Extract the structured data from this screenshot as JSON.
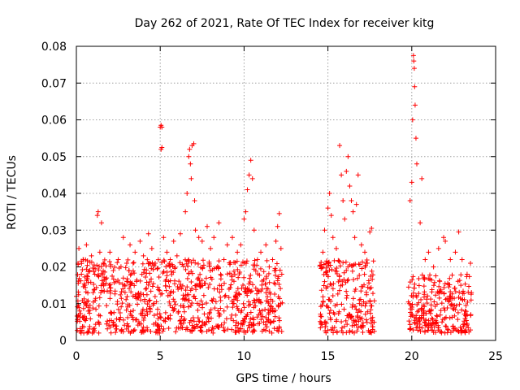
{
  "chart_data": {
    "type": "scatter",
    "title": "Day 262 of 2021, Rate Of TEC Index for receiver kitg",
    "xlabel": "GPS time / hours",
    "ylabel": "ROTI / TECUs",
    "xlim": [
      0,
      25
    ],
    "ylim": [
      0,
      0.08
    ],
    "xticks": [
      0,
      5,
      10,
      15,
      20,
      25
    ],
    "yticks": [
      0,
      0.01,
      0.02,
      0.03,
      0.04,
      0.05,
      0.06,
      0.07,
      0.08
    ],
    "xtick_labels": [
      "0",
      "5",
      "10",
      "15",
      "20",
      "25"
    ],
    "ytick_labels": [
      "0",
      "0.01",
      "0.02",
      "0.03",
      "0.04",
      "0.05",
      "0.06",
      "0.07",
      "0.08"
    ],
    "grid": true,
    "marker": "+",
    "color": "#ff0000",
    "series": [
      {
        "name": "ROTI",
        "points": [
          [
            0.0,
            0.012
          ],
          [
            0.1,
            0.021
          ],
          [
            0.15,
            0.025
          ],
          [
            0.2,
            0.008
          ],
          [
            0.3,
            0.018
          ],
          [
            0.4,
            0.022
          ],
          [
            0.5,
            0.015
          ],
          [
            0.6,
            0.026
          ],
          [
            0.7,
            0.009
          ],
          [
            0.8,
            0.019
          ],
          [
            0.9,
            0.023
          ],
          [
            1.0,
            0.013
          ],
          [
            1.1,
            0.018
          ],
          [
            1.25,
            0.034
          ],
          [
            1.3,
            0.035
          ],
          [
            1.4,
            0.024
          ],
          [
            1.5,
            0.032
          ],
          [
            1.6,
            0.021
          ],
          [
            1.8,
            0.017
          ],
          [
            2.0,
            0.024
          ],
          [
            2.2,
            0.019
          ],
          [
            2.5,
            0.022
          ],
          [
            2.8,
            0.028
          ],
          [
            3.0,
            0.021
          ],
          [
            3.2,
            0.026
          ],
          [
            3.5,
            0.024
          ],
          [
            3.8,
            0.027
          ],
          [
            4.0,
            0.023
          ],
          [
            4.3,
            0.029
          ],
          [
            4.5,
            0.025
          ],
          [
            4.7,
            0.021
          ],
          [
            5.0,
            0.058
          ],
          [
            5.05,
            0.0585
          ],
          [
            5.1,
            0.058
          ],
          [
            5.05,
            0.052
          ],
          [
            5.1,
            0.0525
          ],
          [
            5.2,
            0.028
          ],
          [
            5.4,
            0.024
          ],
          [
            5.6,
            0.022
          ],
          [
            5.8,
            0.027
          ],
          [
            6.0,
            0.023
          ],
          [
            6.2,
            0.029
          ],
          [
            6.5,
            0.035
          ],
          [
            6.6,
            0.04
          ],
          [
            6.7,
            0.05
          ],
          [
            6.75,
            0.052
          ],
          [
            6.8,
            0.048
          ],
          [
            6.85,
            0.044
          ],
          [
            6.9,
            0.053
          ],
          [
            7.0,
            0.0535
          ],
          [
            7.05,
            0.038
          ],
          [
            7.1,
            0.03
          ],
          [
            7.3,
            0.028
          ],
          [
            7.5,
            0.027
          ],
          [
            7.8,
            0.031
          ],
          [
            8.0,
            0.025
          ],
          [
            8.2,
            0.028
          ],
          [
            8.5,
            0.032
          ],
          [
            8.8,
            0.022
          ],
          [
            9.0,
            0.026
          ],
          [
            9.3,
            0.028
          ],
          [
            9.6,
            0.024
          ],
          [
            9.8,
            0.026
          ],
          [
            10.0,
            0.033
          ],
          [
            10.1,
            0.035
          ],
          [
            10.2,
            0.041
          ],
          [
            10.3,
            0.045
          ],
          [
            10.4,
            0.049
          ],
          [
            10.5,
            0.044
          ],
          [
            10.6,
            0.03
          ],
          [
            10.8,
            0.022
          ],
          [
            11.0,
            0.024
          ],
          [
            11.3,
            0.026
          ],
          [
            11.5,
            0.02
          ],
          [
            11.7,
            0.022
          ],
          [
            11.9,
            0.027
          ],
          [
            12.0,
            0.031
          ],
          [
            12.1,
            0.0345
          ],
          [
            12.2,
            0.025
          ],
          [
            12.25,
            0.018
          ],
          [
            14.6,
            0.02
          ],
          [
            14.7,
            0.024
          ],
          [
            14.8,
            0.03
          ],
          [
            15.0,
            0.036
          ],
          [
            15.1,
            0.04
          ],
          [
            15.2,
            0.034
          ],
          [
            15.3,
            0.028
          ],
          [
            15.5,
            0.025
          ],
          [
            15.7,
            0.053
          ],
          [
            15.8,
            0.045
          ],
          [
            15.9,
            0.038
          ],
          [
            16.0,
            0.033
          ],
          [
            16.1,
            0.046
          ],
          [
            16.2,
            0.05
          ],
          [
            16.3,
            0.042
          ],
          [
            16.4,
            0.038
          ],
          [
            16.5,
            0.035
          ],
          [
            16.6,
            0.028
          ],
          [
            16.7,
            0.037
          ],
          [
            16.8,
            0.045
          ],
          [
            17.0,
            0.026
          ],
          [
            17.2,
            0.024
          ],
          [
            17.5,
            0.0295
          ],
          [
            17.6,
            0.0305
          ],
          [
            19.9,
            0.038
          ],
          [
            20.0,
            0.043
          ],
          [
            20.05,
            0.06
          ],
          [
            20.1,
            0.0775
          ],
          [
            20.12,
            0.076
          ],
          [
            20.15,
            0.074
          ],
          [
            20.17,
            0.069
          ],
          [
            20.2,
            0.064
          ],
          [
            20.25,
            0.055
          ],
          [
            20.3,
            0.048
          ],
          [
            20.5,
            0.032
          ],
          [
            20.6,
            0.044
          ],
          [
            20.8,
            0.022
          ],
          [
            21.0,
            0.024
          ],
          [
            21.3,
            0.02
          ],
          [
            21.6,
            0.025
          ],
          [
            21.9,
            0.028
          ],
          [
            22.0,
            0.027
          ],
          [
            22.3,
            0.022
          ],
          [
            22.6,
            0.024
          ],
          [
            22.8,
            0.0295
          ],
          [
            23.0,
            0.022
          ],
          [
            23.3,
            0.018
          ],
          [
            23.5,
            0.021
          ]
        ]
      }
    ],
    "dense_band": {
      "description": "Dense cluster of + markers between ROTI 0.002 and ~0.02",
      "segments": [
        {
          "x_start": 0.0,
          "x_end": 12.3,
          "y_low": 0.002,
          "y_high": 0.022
        },
        {
          "x_start": 14.5,
          "x_end": 17.8,
          "y_low": 0.002,
          "y_high": 0.022
        },
        {
          "x_start": 19.8,
          "x_end": 23.6,
          "y_low": 0.002,
          "y_high": 0.018
        }
      ]
    }
  }
}
